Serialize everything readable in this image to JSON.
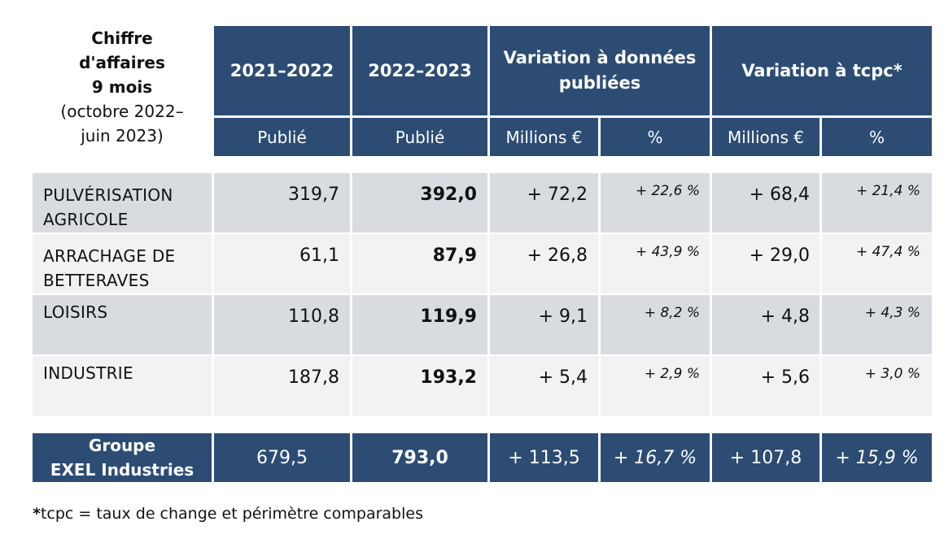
{
  "title": {
    "line1": "Chiffre",
    "line2": "d'affaires",
    "line3": "9 mois",
    "line4": "(octobre 2022–",
    "line5": "juin 2023)"
  },
  "headers": {
    "col1": "2021–2022",
    "col2": "2022–2023",
    "var_pub_line1": "Variation à données",
    "var_pub_line2": "publiées",
    "var_tcpc": "Variation à tcpc*"
  },
  "subheaders": {
    "col1": "Publié",
    "col2": "Publié",
    "var_pub_millions": "Millions €",
    "var_pub_pct": "%",
    "var_tcpc_millions": "Millions €",
    "var_tcpc_pct": "%"
  },
  "rows": [
    {
      "label_line1": "PULVÉRISATION",
      "label_line2": "AGRICOLE",
      "y2122": "319,7",
      "y2223": "392,0",
      "var_pub_m": "+ 72,2",
      "var_pub_pct": "+ 22,6 %",
      "var_tcpc_m": "+ 68,4",
      "var_tcpc_pct": "+ 21,4 %"
    },
    {
      "label_line1": "ARRACHAGE DE",
      "label_line2": "BETTERAVES",
      "y2122": "61,1",
      "y2223": "87,9",
      "var_pub_m": "+ 26,8",
      "var_pub_pct": "+ 43,9 %",
      "var_tcpc_m": "+ 29,0",
      "var_tcpc_pct": "+ 47,4 %"
    },
    {
      "label_line1": "LOISIRS",
      "label_line2": "",
      "y2122": "110,8",
      "y2223": "119,9",
      "var_pub_m": "+ 9,1",
      "var_pub_pct": "+ 8,2 %",
      "var_tcpc_m": "+ 4,8",
      "var_tcpc_pct": "+ 4,3 %"
    },
    {
      "label_line1": "INDUSTRIE",
      "label_line2": "",
      "y2122": "187,8",
      "y2223": "193,2",
      "var_pub_m": "+ 5,4",
      "var_pub_pct": "+ 2,9 %",
      "var_tcpc_m": "+ 5,6",
      "var_tcpc_pct": "+ 3,0 %"
    }
  ],
  "total": {
    "label_line1": "Groupe",
    "label_line2": "EXEL Industries",
    "y2122": "679,5",
    "y2223": "793,0",
    "var_pub_m": "+ 113,5",
    "var_pub_pct": "+ 16,7 %",
    "var_tcpc_m": "+ 107,8",
    "var_tcpc_pct": "+ 15,9 %"
  },
  "footnote": {
    "star": "*",
    "text": "tcpc = taux de change et périmètre comparables"
  },
  "colors": {
    "header_bg": "#2c4c74",
    "row_dark": "#d8dbe0",
    "row_light": "#f2f2f2"
  }
}
